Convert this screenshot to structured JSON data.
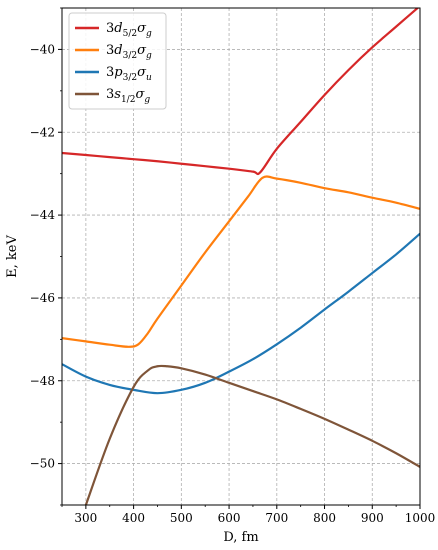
{
  "chart_data": {
    "type": "line",
    "xlabel": "D, fm",
    "ylabel": "E, keV",
    "xlim": [
      250,
      1000
    ],
    "ylim": [
      -51,
      -39
    ],
    "xticks": [
      300,
      400,
      500,
      600,
      700,
      800,
      900,
      1000
    ],
    "yticks": [
      -50,
      -48,
      -46,
      -44,
      -42,
      -40
    ],
    "xtick_labels": [
      "300",
      "400",
      "500",
      "600",
      "700",
      "800",
      "900",
      "1000"
    ],
    "ytick_labels": [
      "−50",
      "−48",
      "−46",
      "−44",
      "−42",
      "−40"
    ],
    "grid": true,
    "legend_position": "top-left",
    "series": [
      {
        "name": "3d5/2σg",
        "color": "#d62728",
        "points": [
          [
            250,
            -42.5
          ],
          [
            300,
            -42.55
          ],
          [
            350,
            -42.6
          ],
          [
            400,
            -42.65
          ],
          [
            450,
            -42.7
          ],
          [
            500,
            -42.76
          ],
          [
            550,
            -42.82
          ],
          [
            600,
            -42.88
          ],
          [
            650,
            -42.95
          ],
          [
            665,
            -42.97
          ],
          [
            700,
            -42.4
          ],
          [
            750,
            -41.75
          ],
          [
            800,
            -41.1
          ],
          [
            850,
            -40.5
          ],
          [
            900,
            -39.95
          ],
          [
            950,
            -39.45
          ],
          [
            1000,
            -38.95
          ]
        ]
      },
      {
        "name": "3d3/2σg",
        "color": "#ff7f0e",
        "points": [
          [
            250,
            -46.97
          ],
          [
            300,
            -47.05
          ],
          [
            350,
            -47.13
          ],
          [
            390,
            -47.18
          ],
          [
            410,
            -47.12
          ],
          [
            430,
            -46.85
          ],
          [
            450,
            -46.5
          ],
          [
            500,
            -45.7
          ],
          [
            550,
            -44.9
          ],
          [
            600,
            -44.15
          ],
          [
            640,
            -43.55
          ],
          [
            670,
            -43.1
          ],
          [
            700,
            -43.12
          ],
          [
            750,
            -43.22
          ],
          [
            800,
            -43.35
          ],
          [
            850,
            -43.45
          ],
          [
            900,
            -43.58
          ],
          [
            950,
            -43.7
          ],
          [
            1000,
            -43.85
          ]
        ]
      },
      {
        "name": "3p3/2σu",
        "color": "#1f77b4",
        "points": [
          [
            250,
            -47.6
          ],
          [
            300,
            -47.9
          ],
          [
            350,
            -48.1
          ],
          [
            400,
            -48.22
          ],
          [
            450,
            -48.3
          ],
          [
            500,
            -48.22
          ],
          [
            550,
            -48.05
          ],
          [
            600,
            -47.78
          ],
          [
            650,
            -47.48
          ],
          [
            700,
            -47.12
          ],
          [
            750,
            -46.72
          ],
          [
            800,
            -46.28
          ],
          [
            850,
            -45.85
          ],
          [
            900,
            -45.4
          ],
          [
            950,
            -44.95
          ],
          [
            1000,
            -44.45
          ]
        ]
      },
      {
        "name": "3s1/2σg",
        "color": "#7f5539",
        "points": [
          [
            300,
            -51.0
          ],
          [
            350,
            -49.4
          ],
          [
            400,
            -48.15
          ],
          [
            430,
            -47.75
          ],
          [
            450,
            -47.65
          ],
          [
            470,
            -47.65
          ],
          [
            500,
            -47.7
          ],
          [
            550,
            -47.85
          ],
          [
            600,
            -48.05
          ],
          [
            650,
            -48.25
          ],
          [
            700,
            -48.45
          ],
          [
            750,
            -48.68
          ],
          [
            800,
            -48.92
          ],
          [
            850,
            -49.18
          ],
          [
            900,
            -49.45
          ],
          [
            950,
            -49.75
          ],
          [
            1000,
            -50.08
          ]
        ]
      }
    ]
  },
  "legend_labels": [
    {
      "base": "3",
      "letter": "d",
      "sub": "5/2",
      "sigma": "σ",
      "parity": "g"
    },
    {
      "base": "3",
      "letter": "d",
      "sub": "3/2",
      "sigma": "σ",
      "parity": "g"
    },
    {
      "base": "3",
      "letter": "p",
      "sub": "3/2",
      "sigma": "σ",
      "parity": "u"
    },
    {
      "base": "3",
      "letter": "s",
      "sub": "1/2",
      "sigma": "σ",
      "parity": "g"
    }
  ],
  "colors": {
    "grid": "#b0b0b0",
    "axes": "#000000"
  }
}
